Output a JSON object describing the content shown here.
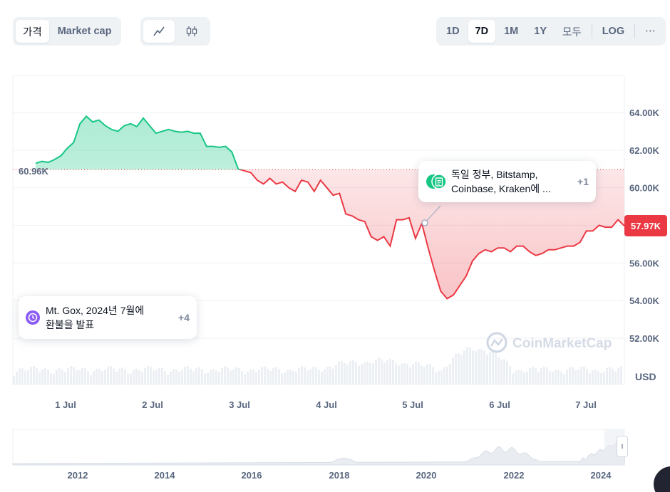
{
  "toolbar": {
    "price_tab": "가격",
    "marketcap_tab": "Market cap",
    "ranges": [
      "1D",
      "7D",
      "1M",
      "1Y",
      "모두"
    ],
    "log_label": "LOG",
    "more_label": "⋯",
    "line_icon": "line-chart-icon",
    "candle_icon": "candlestick-icon"
  },
  "annotations": {
    "start_price": "60.96K",
    "current_price": "57.97K",
    "event1_text_1": "Mt. Gox, 2024년 7월에",
    "event1_text_2": "환불을 발표",
    "event1_count": "+4",
    "event2_text_1": "독일 정부, Bitstamp,",
    "event2_text_2": "Coinbase, Kraken에 ...",
    "event2_count": "+1"
  },
  "watermark": "CoinMarketCap",
  "colors": {
    "up": "#16c784",
    "down": "#ea3943",
    "accent": "#8b5cf6"
  },
  "chart_data": {
    "type": "area",
    "ylabel": "USD",
    "ylim": [
      50000,
      66000
    ],
    "yticks": [
      52000,
      54000,
      56000,
      58000,
      60000,
      62000,
      64000
    ],
    "ytick_labels": [
      "52.00K",
      "54.00K",
      "56.00K",
      "58.00K",
      "60.00K",
      "62.00K",
      "64.00K"
    ],
    "x_ticks": [
      "1 Jul",
      "2 Jul",
      "3 Jul",
      "4 Jul",
      "5 Jul",
      "6 Jul",
      "7 Jul"
    ],
    "baseline": 60960,
    "series": [
      {
        "values": [
          61300,
          61400,
          61350,
          61500,
          61700,
          62100,
          62400,
          63400,
          63800,
          63500,
          63600,
          63300,
          63100,
          63000,
          63300,
          63400,
          63250,
          63700,
          63300,
          62900,
          63000,
          63100,
          63000,
          62950,
          63000,
          62900,
          62900,
          62200,
          62200,
          62150,
          62200,
          61900,
          61000,
          60900,
          60800,
          60400,
          60200,
          60500,
          60200,
          60300,
          60000,
          59800,
          60400,
          60300,
          59800,
          60400,
          60000,
          59600,
          59700,
          58600,
          58500,
          58300,
          58200,
          57400,
          57200,
          57400,
          56900,
          58300,
          58300,
          58400,
          57300,
          58100,
          56800,
          55600,
          54500,
          54100,
          54300,
          54800,
          55300,
          56100,
          56500,
          56700,
          56600,
          56800,
          56800,
          56600,
          56900,
          56900,
          56600,
          56400,
          56500,
          56700,
          56700,
          56800,
          56900,
          56900,
          57100,
          57700,
          57700,
          58000,
          57900,
          57900,
          58300,
          57970
        ]
      }
    ],
    "volume_note": "grey volume bars",
    "navigator": {
      "x_ticks": [
        "2012",
        "2014",
        "2016",
        "2018",
        "2020",
        "2022",
        "2024"
      ]
    }
  }
}
